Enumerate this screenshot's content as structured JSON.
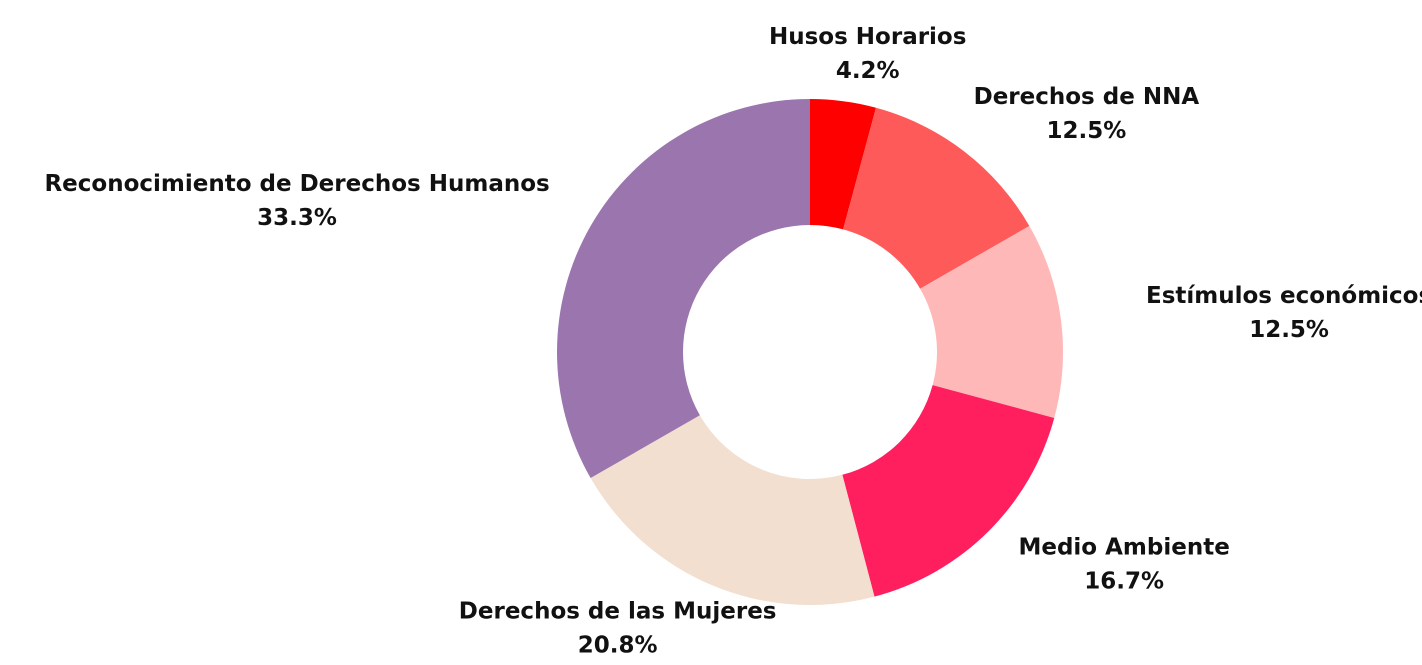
{
  "chart_data": {
    "type": "donut",
    "categories": [
      "Husos Horarios",
      "Derechos de NNA",
      "Estímulos económicos",
      "Medio Ambiente",
      "Derechos de las Mujeres",
      "Reconocimiento de Derechos Humanos"
    ],
    "values": [
      4.2,
      12.5,
      12.5,
      16.7,
      20.8,
      33.3
    ],
    "value_labels": [
      "4.2%",
      "12.5%",
      "12.5%",
      "16.7%",
      "20.8%",
      "33.3%"
    ],
    "colors": [
      "#ff0000",
      "#ff5a5a",
      "#ffb8b8",
      "#ff1f5f",
      "#f2dfd0",
      "#9b76ae"
    ]
  }
}
